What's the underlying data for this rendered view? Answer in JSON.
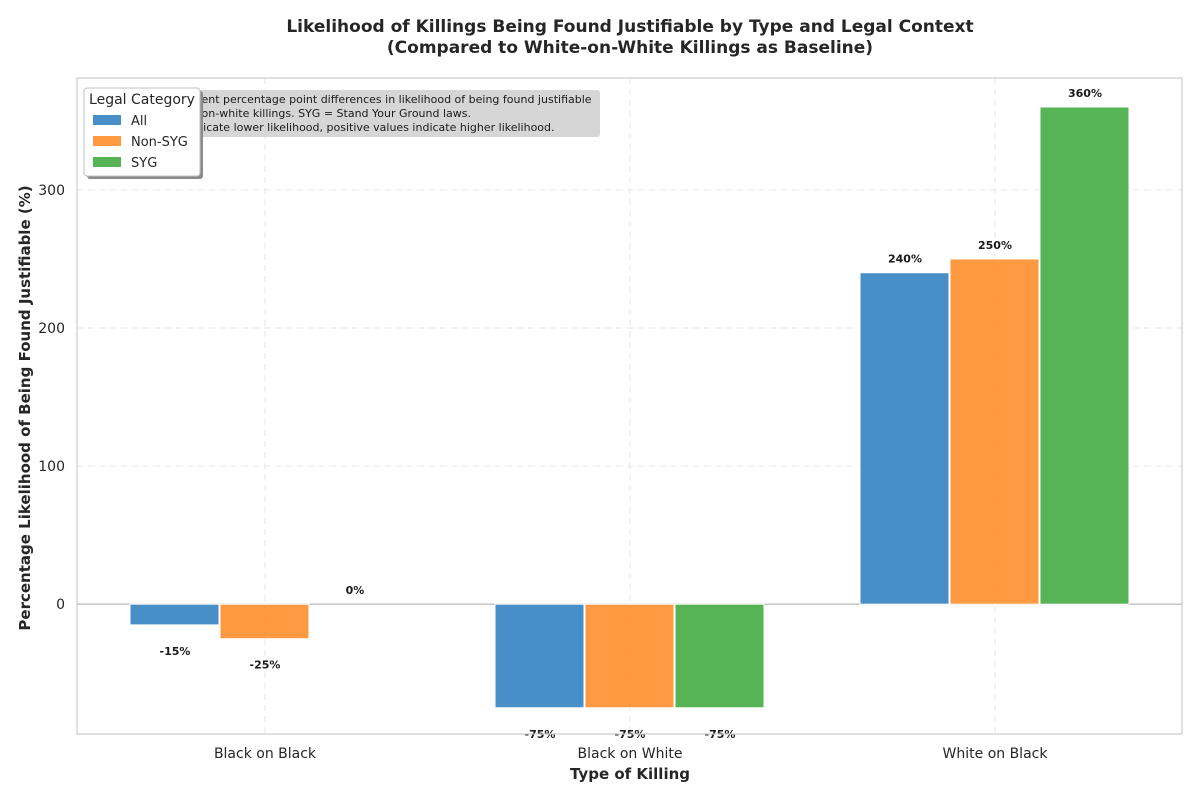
{
  "chart_data": {
    "type": "bar",
    "title": "Likelihood of Killings Being Found Justifiable by Type and Legal Context",
    "subtitle": "(Compared to White-on-White Killings as Baseline)",
    "xlabel": "Type of Killing",
    "ylabel": "Percentage Likelihood of Being Found Justifiable (%)",
    "categories": [
      "Black on Black",
      "Black on White",
      "White on Black"
    ],
    "series": [
      {
        "name": "All",
        "color": "#2f7fbf",
        "values": [
          -15,
          -75,
          240
        ],
        "labels": [
          "-15%",
          "-75%",
          "240%"
        ]
      },
      {
        "name": "Non-SYG",
        "color": "#ff8c28",
        "values": [
          -25,
          -75,
          250
        ],
        "labels": [
          "-25%",
          "-75%",
          "250%"
        ]
      },
      {
        "name": "SYG",
        "color": "#3fa93f",
        "values": [
          0,
          -75,
          360
        ],
        "labels": [
          "0%",
          "-75%",
          "360%"
        ]
      }
    ],
    "ylim": [
      -94,
      381
    ],
    "yticks": [
      0,
      100,
      200,
      300
    ],
    "ytick_labels": [
      "0",
      "100",
      "200",
      "300"
    ],
    "grid": true,
    "legend": {
      "title": "Legal Category",
      "placement": "upper-left"
    },
    "note_lines": [
      "Note: Values represent percentage point differences in likelihood of being found justifiable",
      "compared to white-on-white killings. SYG = Stand Your Ground laws.",
      "Negative values indicate lower likelihood, positive values indicate higher likelihood."
    ]
  }
}
